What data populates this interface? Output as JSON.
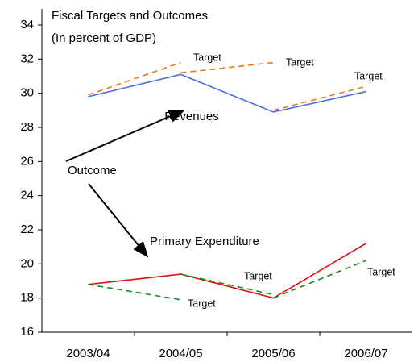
{
  "chart_data": {
    "type": "line",
    "title": "Fiscal Targets and Outcomes",
    "subtitle": "(In percent of GDP)",
    "categories": [
      "2003/04",
      "2004/05",
      "2005/06",
      "2006/07"
    ],
    "series": [
      {
        "name": "Revenues",
        "color": "#4a6fe0",
        "values": [
          29.8,
          31.1,
          28.9,
          30.1
        ]
      },
      {
        "name": "Target",
        "color": "#e87722",
        "dashed": true,
        "values": [
          29.9,
          31.8,
          null,
          null
        ]
      },
      {
        "name": "Target",
        "color": "#e87722",
        "dashed": true,
        "values": [
          null,
          31.2,
          31.8,
          null
        ]
      },
      {
        "name": "Target",
        "color": "#e87722",
        "dashed": true,
        "values": [
          null,
          null,
          29.0,
          30.4
        ]
      },
      {
        "name": "Primary Expenditure",
        "color": "#e01010",
        "values": [
          18.8,
          19.4,
          18.0,
          21.2
        ]
      },
      {
        "name": "Target",
        "color": "#1a8a1a",
        "dashed": true,
        "values": [
          18.8,
          17.9,
          null,
          null
        ]
      },
      {
        "name": "Target",
        "color": "#1a8a1a",
        "dashed": true,
        "values": [
          null,
          19.4,
          18.2,
          null
        ]
      },
      {
        "name": "Target",
        "color": "#1a8a1a",
        "dashed": true,
        "values": [
          null,
          null,
          18.0,
          20.2
        ]
      }
    ],
    "annotations": [
      "Outcome"
    ],
    "ylim": [
      16,
      34
    ],
    "yticks": [
      16,
      18,
      20,
      22,
      24,
      26,
      28,
      30,
      32,
      34
    ]
  }
}
